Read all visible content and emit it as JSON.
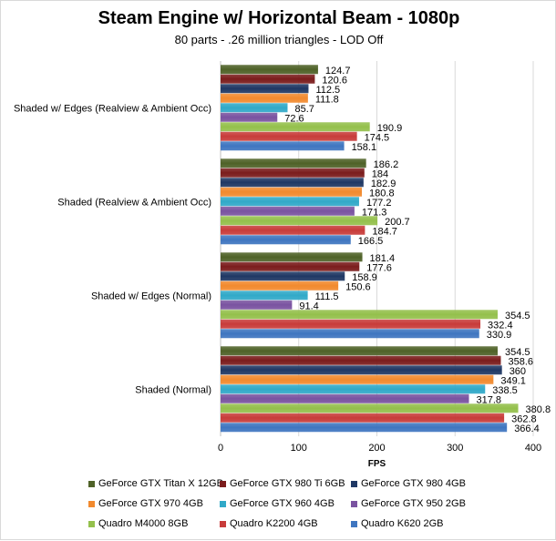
{
  "chart_data": {
    "type": "bar",
    "orientation": "horizontal",
    "title": "Steam Engine w/ Horizontal Beam - 1080p",
    "subtitle": "80 parts - .26 million triangles - LOD Off",
    "xlabel": "FPS",
    "ylabel": "",
    "xlim": [
      0,
      400
    ],
    "xticks": [
      "0",
      "100",
      "200",
      "300",
      "400"
    ],
    "grid": true,
    "legend_position": "bottom",
    "categories": [
      "Shaded w/ Edges (Realview & Ambient Occ)",
      "Shaded (Realview & Ambient Occ)",
      "Shaded w/ Edges (Normal)",
      "Shaded (Normal)"
    ],
    "series": [
      {
        "name": "GeForce GTX Titan X 12GB",
        "color": "#4f6228",
        "values": [
          124.7,
          186.2,
          181.4,
          354.5
        ]
      },
      {
        "name": "GeForce GTX 980 Ti 6GB",
        "color": "#7b1c1c",
        "values": [
          120.6,
          184,
          177.6,
          358.6
        ]
      },
      {
        "name": "GeForce GTX 980 4GB",
        "color": "#1f3864",
        "values": [
          112.5,
          182.9,
          158.9,
          360
        ]
      },
      {
        "name": "GeForce GTX 970 4GB",
        "color": "#f28a2e",
        "values": [
          111.8,
          180.8,
          150.6,
          349.1
        ]
      },
      {
        "name": "GeForce GTX 960 4GB",
        "color": "#31a9c8",
        "values": [
          85.7,
          177.2,
          111.5,
          338.5
        ]
      },
      {
        "name": "GeForce GTX 950 2GB",
        "color": "#7a53a0",
        "values": [
          72.6,
          171.3,
          91.4,
          317.8
        ]
      },
      {
        "name": "Quadro M4000 8GB",
        "color": "#94c04c",
        "values": [
          190.9,
          200.7,
          354.5,
          380.8
        ]
      },
      {
        "name": "Quadro K2200 4GB",
        "color": "#c83c3a",
        "values": [
          174.5,
          184.7,
          332.4,
          362.8
        ]
      },
      {
        "name": "Quadro K620 2GB",
        "color": "#3f76c0",
        "values": [
          158.1,
          166.5,
          330.9,
          366.4
        ]
      }
    ]
  }
}
